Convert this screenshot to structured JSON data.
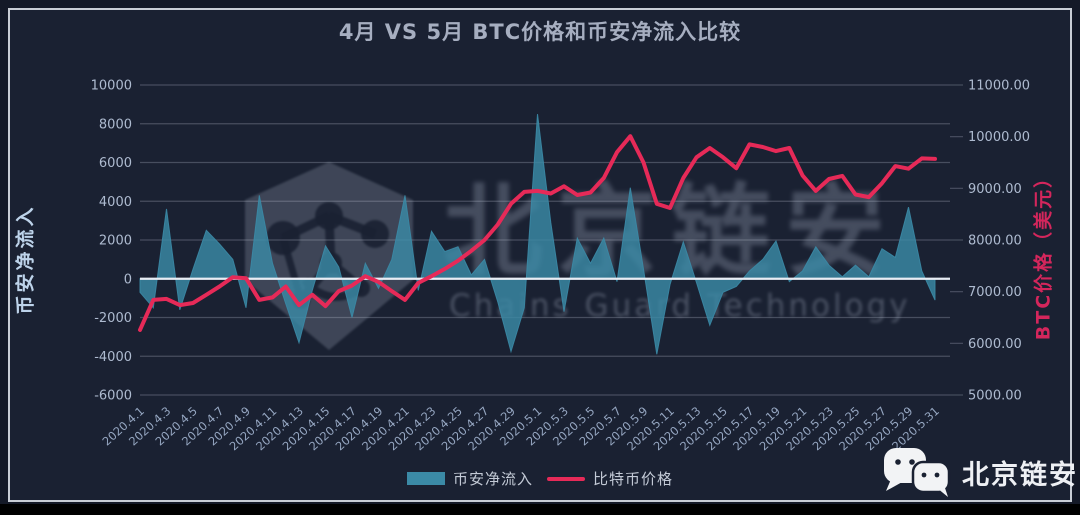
{
  "chart": {
    "title": "4月 VS 5月 BTC价格和币安净流入比较",
    "left_axis_title": "币安净流入",
    "right_axis_title": "BTC价格（美元）",
    "legend": [
      {
        "label": "币安净流入",
        "type": "area"
      },
      {
        "label": "比特币价格",
        "type": "line"
      }
    ]
  },
  "watermark": {
    "logo": "shield-network-logo",
    "cn": "北京链安",
    "en": "Chains Guard Technology"
  },
  "footer_logo": {
    "icon": "wechat-icon",
    "label": "北京链安"
  },
  "colors": {
    "panel_bg": "#1a2132",
    "panel_border": "#c9cdd5",
    "area_fill": "#3b8aa6",
    "line_stroke": "#e62a58",
    "grid": "rgba(200,210,225,0.26)",
    "zero_line": "#e8edf4",
    "tick_label": "#aebbd0",
    "x_tick_label": "#96a7c2",
    "title_text": "#a6aec0",
    "left_axis_title_text": "#bdd3ea",
    "right_axis_title_text": "#d4265c"
  },
  "chart_data": {
    "type": "combo-area-line",
    "title": "4月 VS 5月 BTC价格和币安净流入比较",
    "x": [
      "2020.4.1",
      "2020.4.2",
      "2020.4.3",
      "2020.4.4",
      "2020.4.5",
      "2020.4.6",
      "2020.4.7",
      "2020.4.8",
      "2020.4.9",
      "2020.4.10",
      "2020.4.11",
      "2020.4.12",
      "2020.4.13",
      "2020.4.14",
      "2020.4.15",
      "2020.4.16",
      "2020.4.17",
      "2020.4.18",
      "2020.4.19",
      "2020.4.20",
      "2020.4.21",
      "2020.4.22",
      "2020.4.23",
      "2020.4.24",
      "2020.4.25",
      "2020.4.26",
      "2020.4.27",
      "2020.4.28",
      "2020.4.29",
      "2020.4.30",
      "2020.5.1",
      "2020.5.2",
      "2020.5.3",
      "2020.5.4",
      "2020.5.5",
      "2020.5.6",
      "2020.5.7",
      "2020.5.8",
      "2020.5.9",
      "2020.5.10",
      "2020.5.11",
      "2020.5.12",
      "2020.5.13",
      "2020.5.14",
      "2020.5.15",
      "2020.5.16",
      "2020.5.17",
      "2020.5.18",
      "2020.5.19",
      "2020.5.20",
      "2020.5.21",
      "2020.5.22",
      "2020.5.23",
      "2020.5.24",
      "2020.5.25",
      "2020.5.26",
      "2020.5.27",
      "2020.5.28",
      "2020.5.29",
      "2020.5.30",
      "2020.5.31"
    ],
    "x_tick_step": 2,
    "series": [
      {
        "name": "币安净流入",
        "type": "area",
        "axis": "left",
        "color": "#3b8aa6",
        "values": [
          -700,
          -1500,
          3600,
          -1600,
          500,
          2500,
          1800,
          1000,
          -1500,
          4300,
          800,
          -1300,
          -3300,
          -600,
          1700,
          600,
          -2000,
          800,
          -500,
          1000,
          4300,
          -600,
          2450,
          1400,
          1650,
          200,
          1000,
          -1200,
          -3760,
          -1500,
          8500,
          2900,
          -1700,
          2100,
          800,
          2100,
          -150,
          4700,
          500,
          -3900,
          -300,
          1900,
          -200,
          -2400,
          -700,
          -400,
          400,
          1000,
          1950,
          -150,
          400,
          1650,
          700,
          100,
          700,
          100,
          1550,
          1100,
          3700,
          400,
          -1100
        ]
      },
      {
        "name": "比特币价格",
        "type": "line",
        "axis": "right",
        "color": "#e62a58",
        "values": [
          6260,
          6840,
          6860,
          6740,
          6780,
          6940,
          7100,
          7280,
          7260,
          6840,
          6890,
          7100,
          6740,
          6940,
          6720,
          7010,
          7120,
          7300,
          7190,
          7010,
          6840,
          7170,
          7300,
          7440,
          7600,
          7790,
          8000,
          8300,
          8700,
          8930,
          8950,
          8900,
          9040,
          8870,
          8920,
          9200,
          9700,
          10010,
          9500,
          8700,
          8620,
          9200,
          9600,
          9780,
          9600,
          9390,
          9850,
          9800,
          9720,
          9780,
          9250,
          8950,
          9180,
          9240,
          8880,
          8830,
          9100,
          9430,
          9380,
          9580,
          9570
        ]
      }
    ],
    "left_ylim": [
      -6000,
      10000
    ],
    "left_ticks": [
      10000,
      8000,
      6000,
      4000,
      2000,
      0,
      -2000,
      -4000,
      -6000
    ],
    "right_ylim": [
      5000,
      11000
    ],
    "right_tick_labels": [
      "11000.00",
      "10000.00",
      "9000.00",
      "8000.00",
      "7000.00",
      "6000.00",
      "5000.00"
    ],
    "grid": true,
    "legend_position": "bottom"
  }
}
